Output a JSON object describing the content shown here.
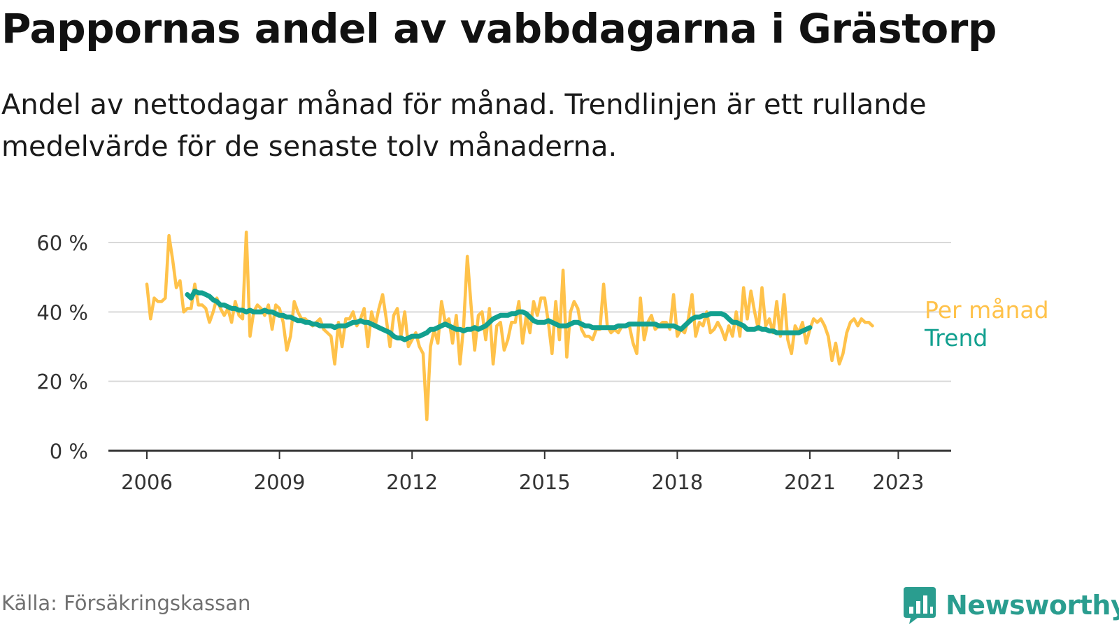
{
  "title": "Pappornas andel av vabbdagarna i Grästorp",
  "subtitle": "Andel av nettodagar månad för månad. Trendlinjen är ett rullande medelvärde för de senaste tolv månaderna.",
  "source": "Källa: Försäkringskassan",
  "brand": {
    "name": "Newsworthy",
    "icon": "bar-chart-speech-bubble-icon"
  },
  "colors": {
    "monthly": "#FFC24A",
    "trend": "#12A08F",
    "grid": "#d9d9d9",
    "axis": "#333333",
    "brand": "#2a9d8f"
  },
  "chart_data": {
    "type": "line",
    "y_format": "percent",
    "ylim": [
      0,
      60
    ],
    "y_ticks": [
      0,
      20,
      40,
      60
    ],
    "y_tick_labels": [
      "0 %",
      "20 %",
      "40 %",
      "60 %"
    ],
    "x_range": [
      "2006-01",
      "2024-01"
    ],
    "x_ticks": [
      2006,
      2009,
      2012,
      2015,
      2018,
      2021,
      2023
    ],
    "x_tick_labels": [
      "2006",
      "2009",
      "2012",
      "2015",
      "2018",
      "2021",
      "2023"
    ],
    "grid": true,
    "legend": "right-end labels",
    "series": [
      {
        "name": "Per månad",
        "color": "#FFC24A",
        "start": "2006-01",
        "values": [
          48,
          38,
          44,
          43,
          43,
          44,
          62,
          55,
          47,
          49,
          40,
          41,
          41,
          48,
          42,
          42,
          41,
          37,
          40,
          44,
          41,
          39,
          41,
          37,
          43,
          39,
          38,
          63,
          33,
          40,
          42,
          41,
          39,
          42,
          35,
          42,
          41,
          37,
          29,
          33,
          43,
          40,
          38,
          38,
          37,
          36,
          37,
          38,
          35,
          34,
          33,
          25,
          37,
          30,
          38,
          38,
          40,
          36,
          38,
          41,
          30,
          40,
          36,
          41,
          45,
          38,
          30,
          39,
          41,
          33,
          40,
          30,
          32,
          34,
          30,
          28,
          9,
          30,
          35,
          31,
          43,
          37,
          38,
          31,
          39,
          25,
          36,
          56,
          42,
          29,
          39,
          40,
          32,
          41,
          25,
          36,
          37,
          29,
          32,
          37,
          37,
          43,
          31,
          39,
          34,
          43,
          39,
          44,
          44,
          37,
          28,
          43,
          32,
          52,
          27,
          40,
          43,
          41,
          35,
          33,
          33,
          32,
          35,
          35,
          48,
          36,
          34,
          35,
          34,
          36,
          36,
          36,
          31,
          28,
          44,
          32,
          37,
          39,
          35,
          36,
          37,
          37,
          35,
          45,
          33,
          35,
          34,
          38,
          45,
          33,
          37,
          36,
          40,
          34,
          35,
          37,
          35,
          32,
          36,
          33,
          40,
          33,
          47,
          38,
          46,
          40,
          35,
          47,
          36,
          38,
          34,
          43,
          33,
          45,
          32,
          28,
          36,
          34,
          37,
          31,
          35,
          38,
          37,
          38,
          36,
          33,
          26,
          31,
          25,
          28,
          34,
          37,
          38,
          36,
          38,
          37,
          37,
          36
        ]
      },
      {
        "name": "Trend",
        "color": "#12A08F",
        "start": "2006-12",
        "values": [
          45,
          44,
          46,
          45.5,
          45.5,
          45,
          44.5,
          43.5,
          43,
          42,
          42,
          41.5,
          41,
          41,
          40.5,
          40.5,
          40,
          40.5,
          40,
          40,
          40,
          40.5,
          40,
          40,
          39.5,
          39,
          39,
          38.5,
          38.5,
          38,
          37.5,
          37.5,
          37,
          37,
          36.5,
          36.5,
          36,
          36,
          36,
          36,
          35.5,
          36,
          36,
          36,
          36.5,
          37,
          37,
          37.5,
          37,
          37,
          36.5,
          36,
          35.5,
          35,
          34.5,
          34,
          33,
          32.5,
          32.5,
          32,
          32.5,
          33,
          33,
          33,
          33.5,
          34,
          35,
          35,
          35.5,
          36,
          36.5,
          36,
          35.5,
          35,
          35,
          34.5,
          35,
          35,
          35.5,
          35,
          35.5,
          36,
          37,
          38,
          38.5,
          39,
          39,
          39,
          39.5,
          39.5,
          40,
          40,
          39.5,
          38.5,
          37.5,
          37,
          37,
          37,
          37.5,
          37,
          36.5,
          36,
          36,
          36,
          36.5,
          37,
          37,
          36.5,
          36,
          36,
          35.5,
          35.5,
          35.5,
          35.5,
          35.5,
          35.5,
          35.5,
          36,
          36,
          36,
          36.5,
          36.5,
          36.5,
          36.5,
          36.5,
          36.5,
          36.5,
          36.5,
          36,
          36,
          36,
          36,
          36,
          35.5,
          35,
          36,
          37,
          38,
          38.5,
          38.5,
          39,
          39,
          39.5,
          39.5,
          39.5,
          39.5,
          39,
          38,
          37,
          37,
          36.5,
          36,
          35,
          35,
          35,
          35.5,
          35,
          35,
          34.5,
          34.5,
          34,
          34,
          34,
          34,
          34,
          34,
          34,
          34.5,
          35,
          35.5
        ]
      }
    ]
  }
}
